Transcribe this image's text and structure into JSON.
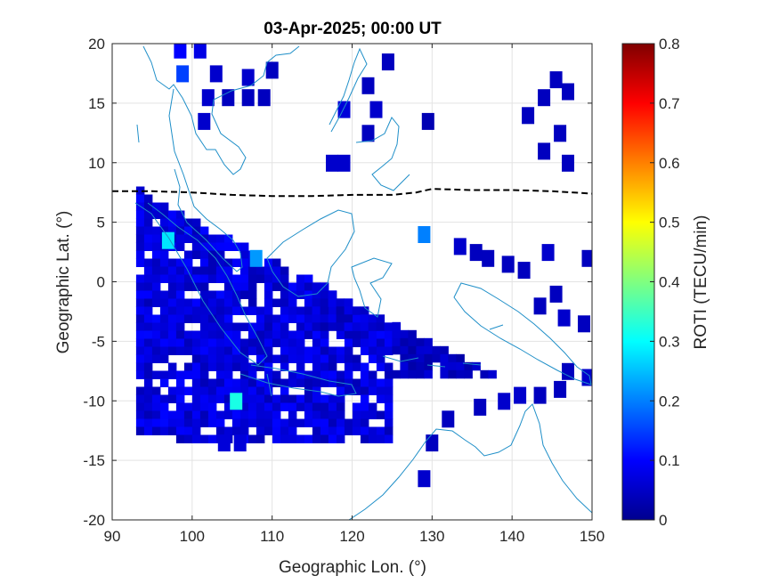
{
  "chart_data": {
    "type": "heatmap",
    "title": "03-Apr-2025; 00:00 UT",
    "xlabel": "Geographic Lon. (°)",
    "ylabel": "Geographic Lat. (°)",
    "xlim": [
      90,
      150
    ],
    "ylim": [
      -20,
      20
    ],
    "xticks": [
      "90",
      "100",
      "110",
      "120",
      "130",
      "140",
      "150"
    ],
    "yticks": [
      "20",
      "15",
      "10",
      "5",
      "0",
      "-5",
      "-10",
      "-15",
      "-20"
    ],
    "grid": true,
    "colorbar": {
      "label": "ROTI (TECU/min)",
      "range": [
        0,
        0.8
      ],
      "ticks": [
        "0.8",
        "0.7",
        "0.6",
        "0.5",
        "0.4",
        "0.3",
        "0.2",
        "0.1",
        "0"
      ],
      "colormap": "jet"
    },
    "dip_equator": [
      [
        90,
        7.6
      ],
      [
        95,
        7.6
      ],
      [
        100,
        7.5
      ],
      [
        105,
        7.3
      ],
      [
        110,
        7.2
      ],
      [
        115,
        7.2
      ],
      [
        120,
        7.3
      ],
      [
        125,
        7.3
      ],
      [
        128,
        7.5
      ],
      [
        130,
        7.8
      ],
      [
        135,
        7.7
      ],
      [
        140,
        7.7
      ],
      [
        145,
        7.6
      ],
      [
        150,
        7.4
      ]
    ],
    "roti_regions": [
      {
        "lon": [
          93,
          125
        ],
        "lat": [
          -13,
          8
        ],
        "roti": 0.07
      },
      {
        "lon": [
          115,
          132
        ],
        "lat": [
          -4,
          6
        ],
        "roti": 0.06
      },
      {
        "lon": [
          125,
          140
        ],
        "lat": [
          -8,
          2
        ],
        "roti": 0.05
      }
    ],
    "roti_cells": [
      [
        98.5,
        19.5,
        0.1
      ],
      [
        101,
        19.5,
        0.08
      ],
      [
        98.8,
        17.5,
        0.15
      ],
      [
        103,
        17.5,
        0.06
      ],
      [
        107,
        17.2,
        0.06
      ],
      [
        110,
        17.8,
        0.05
      ],
      [
        102,
        15.5,
        0.06
      ],
      [
        104.5,
        15.5,
        0.05
      ],
      [
        107,
        15.5,
        0.05
      ],
      [
        109,
        15.5,
        0.05
      ],
      [
        101.5,
        13.5,
        0.06
      ],
      [
        119,
        14.5,
        0.07
      ],
      [
        122,
        16.5,
        0.05
      ],
      [
        123,
        14.5,
        0.06
      ],
      [
        124.5,
        18.5,
        0.05
      ],
      [
        117.5,
        10,
        0.06
      ],
      [
        119,
        10,
        0.06
      ],
      [
        122,
        12.5,
        0.05
      ],
      [
        129.5,
        13.5,
        0.04
      ],
      [
        142,
        14,
        0.05
      ],
      [
        144,
        15.5,
        0.05
      ],
      [
        145.5,
        17,
        0.05
      ],
      [
        147,
        16,
        0.05
      ],
      [
        146,
        12.5,
        0.05
      ],
      [
        144,
        11,
        0.05
      ],
      [
        147,
        10,
        0.05
      ],
      [
        104,
        -13.5,
        0.07
      ],
      [
        106,
        -13.5,
        0.07
      ],
      [
        129,
        -16.5,
        0.06
      ],
      [
        130,
        -13.5,
        0.05
      ],
      [
        132,
        -11.5,
        0.05
      ],
      [
        136,
        -10.5,
        0.05
      ],
      [
        139,
        -10,
        0.06
      ],
      [
        141,
        -9.5,
        0.06
      ],
      [
        143.5,
        -9.5,
        0.05
      ],
      [
        146,
        -9,
        0.05
      ],
      [
        147,
        -7.5,
        0.05
      ],
      [
        149.5,
        -8,
        0.06
      ],
      [
        149,
        -3.5,
        0.05
      ],
      [
        146.5,
        -3,
        0.06
      ],
      [
        143.5,
        -2,
        0.05
      ],
      [
        145.5,
        -1,
        0.05
      ],
      [
        144.5,
        2.5,
        0.06
      ],
      [
        149.5,
        2,
        0.05
      ],
      [
        137,
        2,
        0.05
      ],
      [
        139.5,
        1.5,
        0.05
      ],
      [
        141.5,
        1,
        0.05
      ],
      [
        133.5,
        3,
        0.06
      ],
      [
        135.5,
        2.5,
        0.05
      ],
      [
        105.5,
        -10,
        0.32
      ],
      [
        97,
        3.5,
        0.28
      ],
      [
        108,
        2,
        0.22
      ],
      [
        129,
        4,
        0.2
      ]
    ]
  }
}
